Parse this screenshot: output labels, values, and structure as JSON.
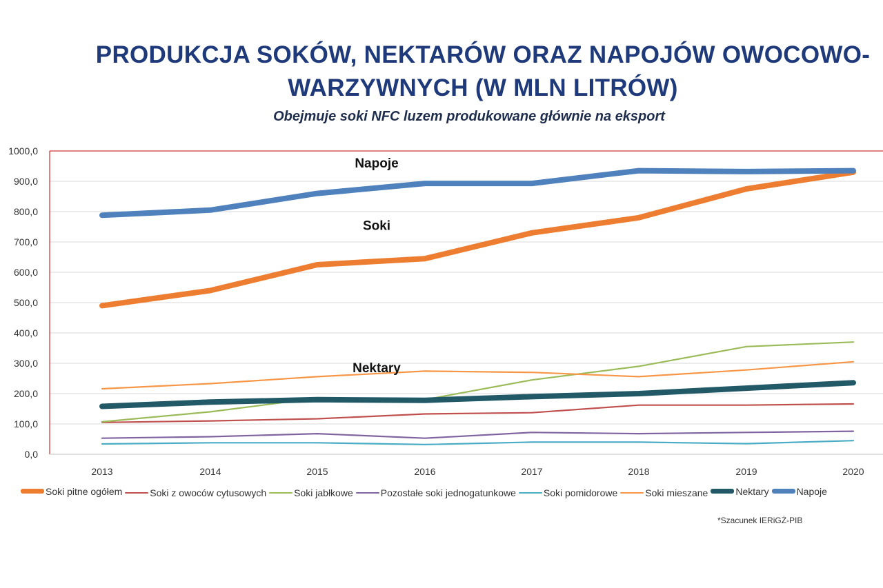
{
  "chart_data": {
    "type": "line",
    "title_lines": [
      "PRODUKCJA SOKÓW, NEKTARÓW ORAZ NAPOJÓW OWOCOWO-",
      "WARZYWNYCH (W MLN LITRÓW)"
    ],
    "subtitle": "Obejmuje soki NFC luzem produkowane głównie na eksport",
    "x": [
      "2013",
      "2014",
      "2015",
      "2016",
      "2017",
      "2018",
      "2019",
      "2020"
    ],
    "ylim": [
      0,
      1000
    ],
    "yticks": [
      "0,0",
      "100,0",
      "200,0",
      "300,0",
      "400,0",
      "500,0",
      "600,0",
      "700,0",
      "800,0",
      "900,0",
      "1000,0"
    ],
    "grid": true,
    "legend_position": "bottom",
    "series": [
      {
        "name": "Soki pitne ogółem",
        "color": "#ed7d31",
        "width": "thick",
        "values": [
          490,
          540,
          625,
          645,
          730,
          780,
          875,
          930
        ]
      },
      {
        "name": "Soki z owoców cytusowych",
        "color": "#c0504d",
        "width": "thin",
        "values": [
          105,
          110,
          117,
          133,
          137,
          162,
          162,
          166
        ]
      },
      {
        "name": "Soki jabłkowe",
        "color": "#9bbb59",
        "width": "thin",
        "values": [
          107,
          140,
          185,
          180,
          245,
          290,
          355,
          370
        ]
      },
      {
        "name": "Pozostałe soki jednogatunkowe",
        "color": "#8064a2",
        "width": "thin",
        "values": [
          53,
          58,
          68,
          53,
          72,
          68,
          72,
          76
        ]
      },
      {
        "name": "Soki pomidorowe",
        "color": "#4bacc6",
        "width": "thin",
        "values": [
          34,
          38,
          38,
          32,
          40,
          40,
          35,
          45
        ]
      },
      {
        "name": "Soki mieszane",
        "color": "#f79646",
        "width": "thin",
        "values": [
          216,
          233,
          256,
          274,
          270,
          256,
          278,
          305
        ]
      },
      {
        "name": "Nektary",
        "color": "#215967",
        "width": "thick",
        "values": [
          158,
          172,
          180,
          178,
          190,
          200,
          218,
          236
        ]
      },
      {
        "name": "Napoje",
        "color": "#4f81bd",
        "width": "thick",
        "values": [
          788,
          805,
          860,
          893,
          893,
          935,
          932,
          935
        ]
      }
    ],
    "annotations": [
      {
        "text": "Napoje",
        "x": "2016",
        "y": 945
      },
      {
        "text": "Soki",
        "x": "2016",
        "y": 740
      },
      {
        "text": "Nektary",
        "x": "2016",
        "y": 270
      }
    ],
    "footnote": "*Szacunek IERiGŻ-PIB"
  }
}
